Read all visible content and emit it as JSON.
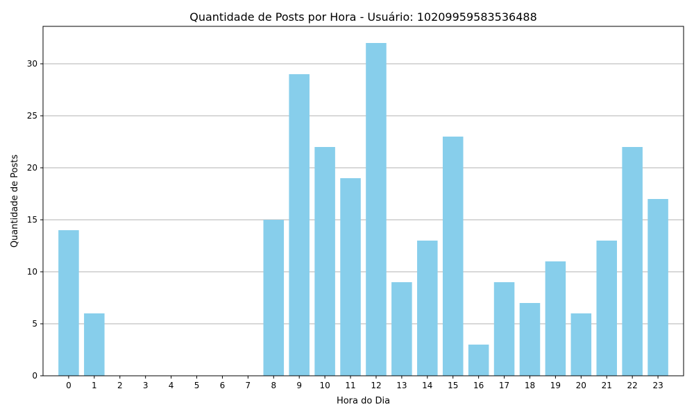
{
  "chart_data": {
    "type": "bar",
    "title": "Quantidade de Posts por Hora - Usuário: 10209959583536488",
    "xlabel": "Hora do Dia",
    "ylabel": "Quantidade de Posts",
    "categories": [
      "0",
      "1",
      "2",
      "3",
      "4",
      "5",
      "6",
      "7",
      "8",
      "9",
      "10",
      "11",
      "12",
      "13",
      "14",
      "15",
      "16",
      "17",
      "18",
      "19",
      "20",
      "21",
      "22",
      "23"
    ],
    "values": [
      14,
      6,
      0,
      0,
      0,
      0,
      0,
      0,
      15,
      29,
      22,
      19,
      32,
      9,
      13,
      23,
      3,
      9,
      7,
      11,
      6,
      13,
      22,
      17
    ],
    "ylim": [
      0,
      33.6
    ],
    "yticks": [
      0,
      5,
      10,
      15,
      20,
      25,
      30
    ],
    "grid": "y",
    "bar_color": "#87ceeb",
    "grid_color": "#b0b0b0"
  }
}
